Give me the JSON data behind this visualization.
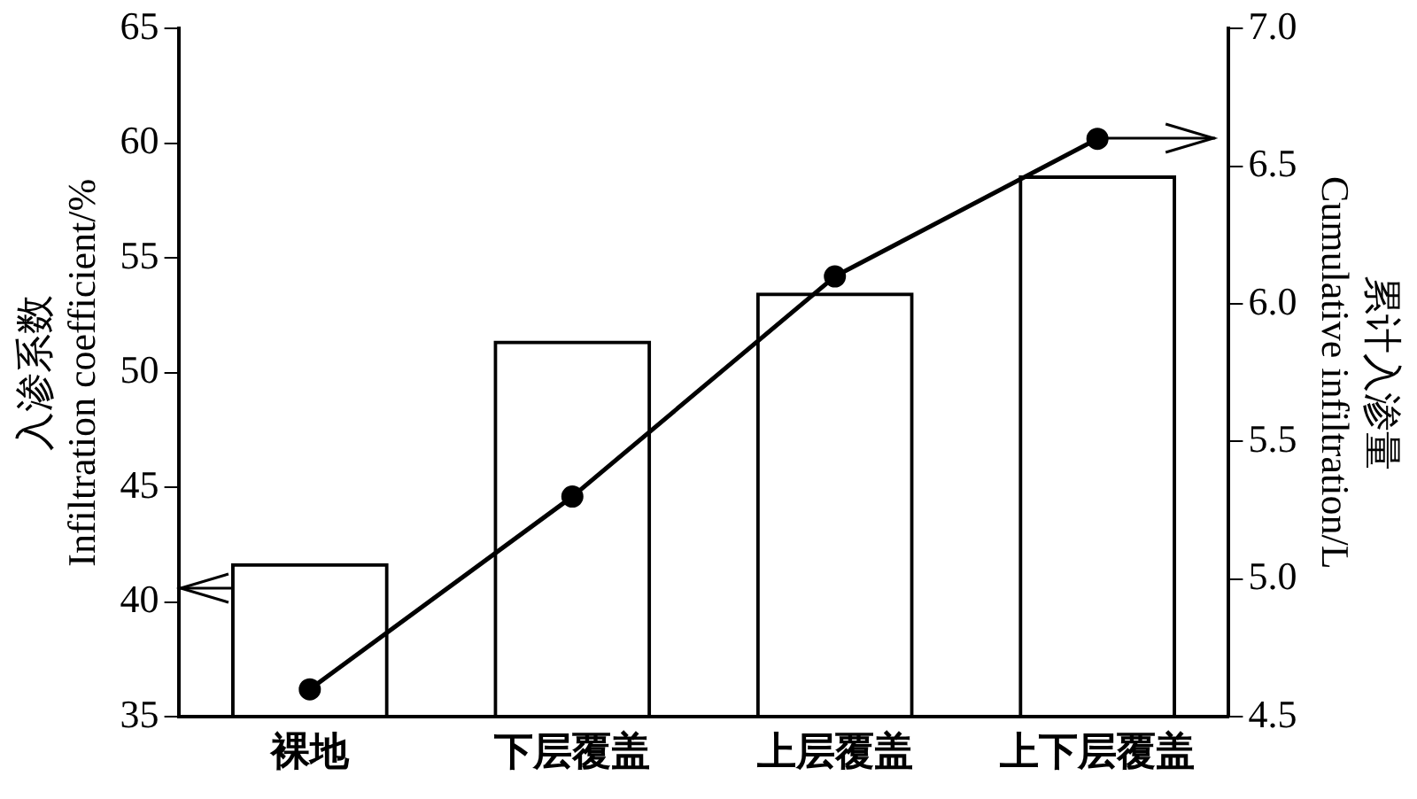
{
  "chart_data": {
    "type": "bar",
    "categories": [
      "裸地",
      "下层覆盖",
      "上层覆盖",
      "上下层覆盖"
    ],
    "ylabel": "入渗系数\nInfiltration coefficient/%",
    "y2label": "累计入渗量\nCumulative infiltration/L",
    "series": [
      {
        "color": "#000000",
        "values": [
          41.7,
          51.4,
          53.5,
          58.6
        ]
      },
      {
        "type": "line",
        "axis": "y2",
        "color": "#000000",
        "marker": "circle",
        "line_style": "solid",
        "values": [
          4.6,
          5.3,
          6.1,
          6.6
        ]
      }
    ],
    "ylim": [
      35,
      65
    ],
    "yticks": [
      35,
      40,
      45,
      50,
      55,
      60,
      65
    ],
    "y2lim": [
      4.5,
      7.0
    ],
    "y2ticks": [
      4.5,
      {
        "value": 5.0,
        "label": "5.0"
      },
      5.5,
      {
        "value": 6.0,
        "label": "6.0"
      },
      6.5,
      {
        "value": 7.0,
        "label": "7.0"
      }
    ],
    "grid": false,
    "legend": false
  }
}
